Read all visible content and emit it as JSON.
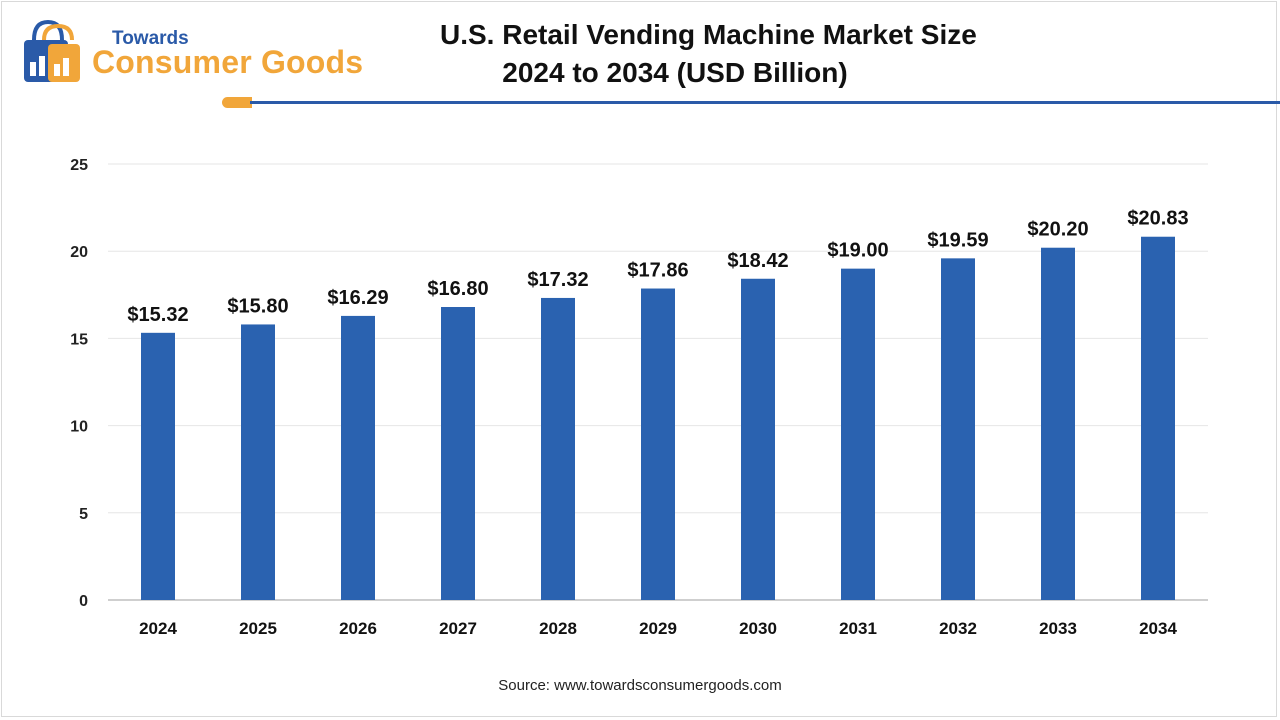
{
  "brand": {
    "name_small": "Towards",
    "name_big": "Consumer Goods",
    "primary_color": "#2a5aa8",
    "accent_color": "#f1a63a"
  },
  "source_text": "Source: www.towardsconsumergoods.com",
  "chart_data": {
    "type": "bar",
    "title": [
      "U.S. Retail Vending Machine Market Size",
      "2024 to 2034 (USD Billion)"
    ],
    "categories": [
      "2024",
      "2025",
      "2026",
      "2027",
      "2028",
      "2029",
      "2030",
      "2031",
      "2032",
      "2033",
      "2034"
    ],
    "values": [
      15.32,
      15.8,
      16.29,
      16.8,
      17.32,
      17.86,
      18.42,
      19.0,
      19.59,
      20.2,
      20.83
    ],
    "data_labels": [
      "$15.32",
      "$15.80",
      "$16.29",
      "$16.80",
      "$17.32",
      "$17.86",
      "$18.42",
      "$19.00",
      "$19.59",
      "$20.20",
      "$20.83"
    ],
    "ylim": [
      0,
      25
    ],
    "yticks": [
      "0",
      "5",
      "10",
      "15",
      "20",
      "25"
    ],
    "bar_color": "#2a62b0",
    "grid": true,
    "xlabel": "",
    "ylabel": ""
  }
}
